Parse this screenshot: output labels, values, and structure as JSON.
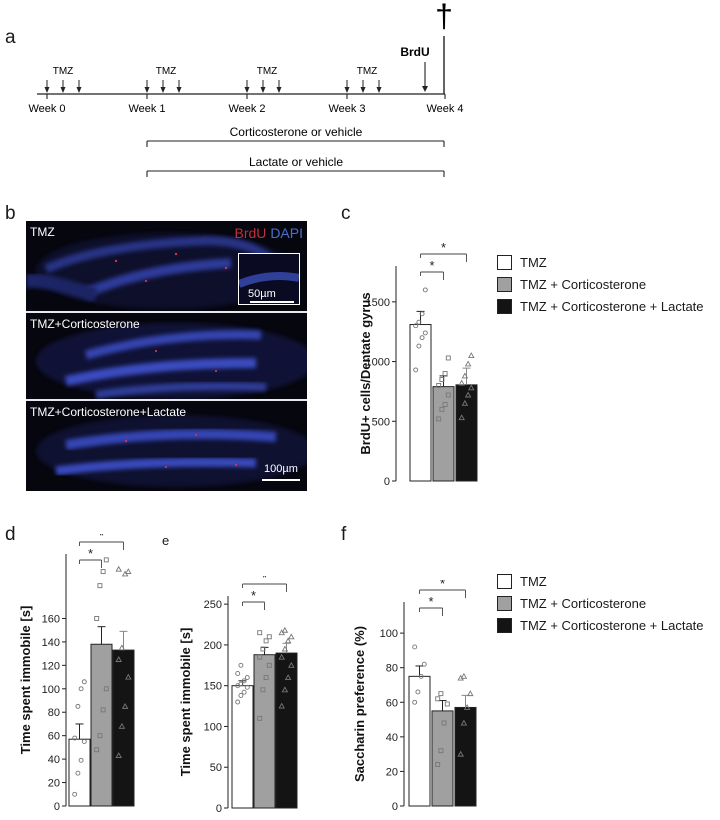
{
  "panel_letters": {
    "a": "a",
    "b": "b",
    "c": "c",
    "d": "d",
    "e": "e",
    "f": "f"
  },
  "timeline": {
    "weeks": [
      "Week 0",
      "Week 1",
      "Week 2",
      "Week 3",
      "Week 4"
    ],
    "tmz_label": "TMZ",
    "brdu_label": "BrdU",
    "death_symbol": "†",
    "cort_label": "Corticosterone or vehicle",
    "lactate_label": "Lactate or vehicle"
  },
  "micrographs": {
    "stain_red": "BrdU",
    "stain_blue": "DAPI",
    "panels": [
      "TMZ",
      "TMZ+Corticosterone",
      "TMZ+Corticosterone+Lactate"
    ],
    "inset_scale": "50µm",
    "main_scale": "100µm"
  },
  "legend": {
    "items": [
      "TMZ",
      "TMZ + Corticosterone",
      "TMZ + Corticosterone + Lactate"
    ],
    "colors": [
      "#ffffff",
      "#a0a0a0",
      "#141414"
    ]
  },
  "significance": "*",
  "chart_data": [
    {
      "id": "c",
      "type": "bar",
      "ylabel": "BrdU+ cells/Dentate gyrus",
      "ylim": [
        0,
        1800
      ],
      "yticks": [
        0,
        500,
        1000,
        1500
      ],
      "values": [
        1310,
        790,
        805
      ],
      "errors": [
        110,
        90,
        140
      ],
      "points": [
        [
          930,
          1130,
          1200,
          1240,
          1300,
          1330,
          1400,
          1600
        ],
        [
          520,
          600,
          640,
          720,
          800,
          850,
          900,
          1030
        ],
        [
          530,
          650,
          720,
          780,
          820,
          880,
          980,
          1050
        ]
      ],
      "brackets": [
        [
          0,
          1
        ],
        [
          0,
          2
        ]
      ]
    },
    {
      "id": "d",
      "type": "bar",
      "ylabel": "Time spent immobile [s]",
      "ylim": [
        0,
        215
      ],
      "yticks": [
        0,
        20,
        40,
        60,
        80,
        100,
        120,
        140,
        160
      ],
      "values": [
        57,
        138,
        133
      ],
      "errors": [
        13,
        15,
        16
      ],
      "points": [
        [
          10,
          28,
          39,
          55,
          58,
          85,
          100,
          106
        ],
        [
          48,
          60,
          82,
          100,
          160,
          188,
          200,
          210
        ],
        [
          43,
          68,
          85,
          110,
          125,
          135,
          198,
          200,
          202
        ]
      ],
      "brackets": [
        [
          0,
          1
        ],
        [
          0,
          2
        ]
      ]
    },
    {
      "id": "e",
      "type": "bar",
      "ylabel": "Time spent immobile [s]",
      "ylim": [
        0,
        260
      ],
      "yticks": [
        0,
        50,
        100,
        150,
        200,
        250
      ],
      "values": [
        150,
        188,
        190
      ],
      "errors": [
        6,
        9,
        12
      ],
      "points": [
        [
          130,
          138,
          142,
          148,
          150,
          152,
          156,
          160,
          165,
          175
        ],
        [
          110,
          145,
          160,
          175,
          185,
          195,
          205,
          210,
          215
        ],
        [
          125,
          145,
          160,
          175,
          185,
          195,
          205,
          210,
          215,
          218
        ]
      ],
      "brackets": [
        [
          0,
          1
        ],
        [
          0,
          2
        ]
      ]
    },
    {
      "id": "f",
      "type": "bar",
      "ylabel": "Saccharin preference (%)",
      "ylim": [
        0,
        118
      ],
      "yticks": [
        0,
        20,
        40,
        60,
        80,
        100
      ],
      "values": [
        75,
        55,
        57
      ],
      "errors": [
        6,
        6,
        7
      ],
      "points": [
        [
          60,
          66,
          75,
          82,
          92
        ],
        [
          24,
          32,
          48,
          59,
          62,
          65
        ],
        [
          30,
          48,
          57,
          65,
          74,
          75
        ]
      ],
      "brackets": [
        [
          0,
          1
        ],
        [
          0,
          2
        ]
      ]
    }
  ]
}
